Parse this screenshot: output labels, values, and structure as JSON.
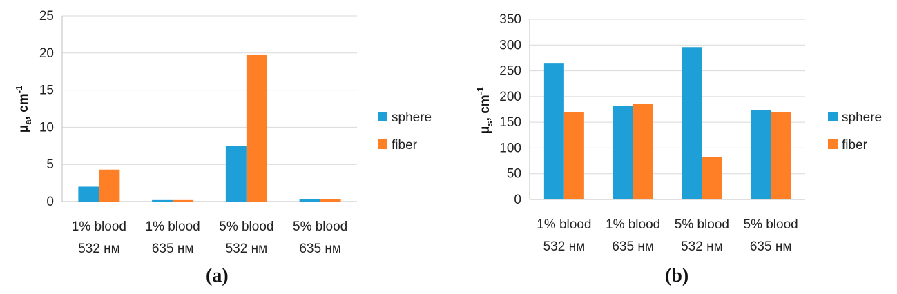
{
  "chart_data": [
    {
      "type": "bar",
      "ylabel_main": "μ",
      "ylabel_sub": "a",
      "ylabel_unit": ", cm",
      "ylabel_sup": "-1",
      "ylim": [
        0,
        25
      ],
      "yticks": [
        "0",
        "5",
        "10",
        "15",
        "20",
        "25"
      ],
      "ytick_values": [
        0,
        5,
        10,
        15,
        20,
        25
      ],
      "categories": [
        [
          "1% blood",
          "532 нм"
        ],
        [
          "1% blood",
          "635 нм"
        ],
        [
          "5% blood",
          "532 нм"
        ],
        [
          "5% blood",
          "635 нм"
        ]
      ],
      "series": [
        {
          "name": "sphere",
          "color": "#1f9fd8",
          "values": [
            2.0,
            0.2,
            7.5,
            0.35
          ]
        },
        {
          "name": "fiber",
          "color": "#ff7f27",
          "values": [
            4.3,
            0.2,
            19.8,
            0.35
          ]
        }
      ],
      "legend_position": "right",
      "grid": true,
      "caption": "(a)"
    },
    {
      "type": "bar",
      "ylabel_main": "μ",
      "ylabel_sub": "s",
      "ylabel_unit": ", cm",
      "ylabel_sup": "-1",
      "ylim": [
        0,
        350
      ],
      "yticks": [
        "0",
        "50",
        "100",
        "150",
        "200",
        "250",
        "300",
        "350"
      ],
      "ytick_values": [
        0,
        50,
        100,
        150,
        200,
        250,
        300,
        350
      ],
      "categories": [
        [
          "1% blood",
          "532 нм"
        ],
        [
          "1% blood",
          "635 нм"
        ],
        [
          "5% blood",
          "532 нм"
        ],
        [
          "5% blood",
          "635 нм"
        ]
      ],
      "series": [
        {
          "name": "sphere",
          "color": "#1f9fd8",
          "values": [
            264,
            182,
            296,
            173
          ]
        },
        {
          "name": "fiber",
          "color": "#ff7f27",
          "values": [
            169,
            186,
            83,
            169
          ]
        }
      ],
      "legend_position": "right",
      "grid": true,
      "caption": "(b)"
    }
  ]
}
